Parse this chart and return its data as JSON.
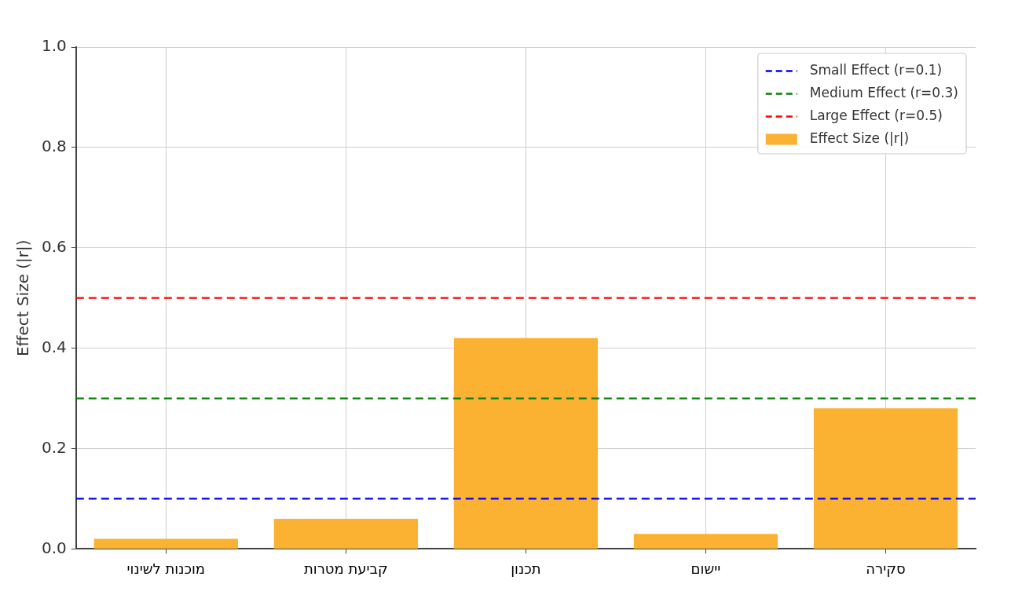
{
  "chart_data": {
    "type": "bar",
    "categories": [
      "מוכנות לשינוי",
      "קביעת מטרות",
      "תכנון",
      "יישום",
      "סקירה"
    ],
    "series": [
      {
        "name": "Effect Size (|r|)",
        "color": "#fbb233",
        "values": [
          0.02,
          0.06,
          0.42,
          0.03,
          0.28
        ]
      }
    ],
    "ylabel": "Effect Size (|r|)",
    "ylim": [
      0,
      1
    ],
    "yticks": [
      {
        "value": 0,
        "label": "0.0"
      },
      0.2,
      0.4,
      0.6,
      0.8,
      {
        "value": 1,
        "label": "1.0"
      }
    ],
    "ref_lines": [
      {
        "axis": "y",
        "value": 0.1,
        "label": "Small Effect (r=0.1)",
        "color": "#0000ff",
        "line_style": "dashed"
      },
      {
        "axis": "y",
        "value": 0.3,
        "label": "Medium Effect (r=0.3)",
        "color": "#008000",
        "line_style": "dashed"
      },
      {
        "axis": "y",
        "value": 0.5,
        "label": "Large Effect (r=0.5)",
        "color": "#ff0000",
        "line_style": "dashed"
      }
    ],
    "grid": true,
    "legend": "top right"
  }
}
